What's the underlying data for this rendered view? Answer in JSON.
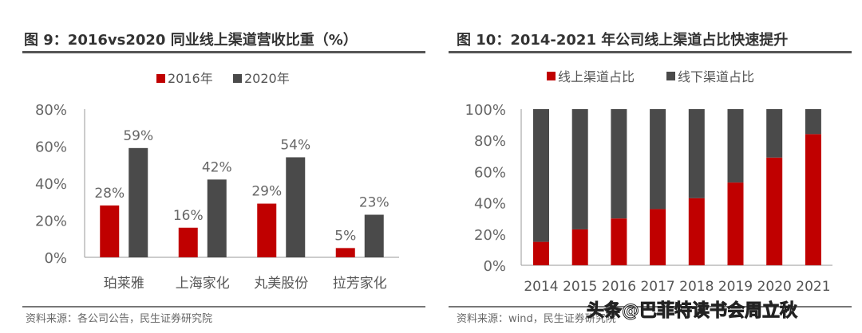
{
  "chart_data": [
    {
      "type": "bar",
      "title": "图 9：2016vs2020 同业线上渠道营收比重（%）",
      "categories": [
        "珀莱雅",
        "上海家化",
        "丸美股份",
        "拉芳家化"
      ],
      "series": [
        {
          "name": "2016年",
          "values": [
            28,
            16,
            29,
            5
          ],
          "color": "#c00000"
        },
        {
          "name": "2020年",
          "values": [
            59,
            42,
            54,
            23
          ],
          "color": "#4a4a4a"
        }
      ],
      "yticks": [
        "0%",
        "20%",
        "40%",
        "60%",
        "80%"
      ],
      "ylim": [
        0,
        80
      ],
      "legend": "top",
      "data_labels": [
        "28%",
        "16%",
        "29%",
        "5%",
        "59%",
        "42%",
        "54%",
        "23%"
      ],
      "source": "资料来源：各公司公告，民生证券研究院"
    },
    {
      "type": "bar",
      "stacked": true,
      "title": "图 10：2014-2021 年公司线上渠道占比快速提升",
      "categories": [
        "2014",
        "2015",
        "2016",
        "2017",
        "2018",
        "2019",
        "2020",
        "2021"
      ],
      "series": [
        {
          "name": "线上渠道占比",
          "values": [
            15,
            23,
            30,
            36,
            43,
            53,
            69,
            84
          ],
          "color": "#c00000"
        },
        {
          "name": "线下渠道占比",
          "values": [
            85,
            77,
            70,
            64,
            57,
            47,
            31,
            16
          ],
          "color": "#4a4a4a"
        }
      ],
      "yticks": [
        "0%",
        "20%",
        "40%",
        "60%",
        "80%",
        "100%"
      ],
      "ylim": [
        0,
        100
      ],
      "legend": "top",
      "source": "资料来源：wind，民生证券研究院"
    }
  ],
  "watermark": "头条@巴菲特读书会周立秋"
}
